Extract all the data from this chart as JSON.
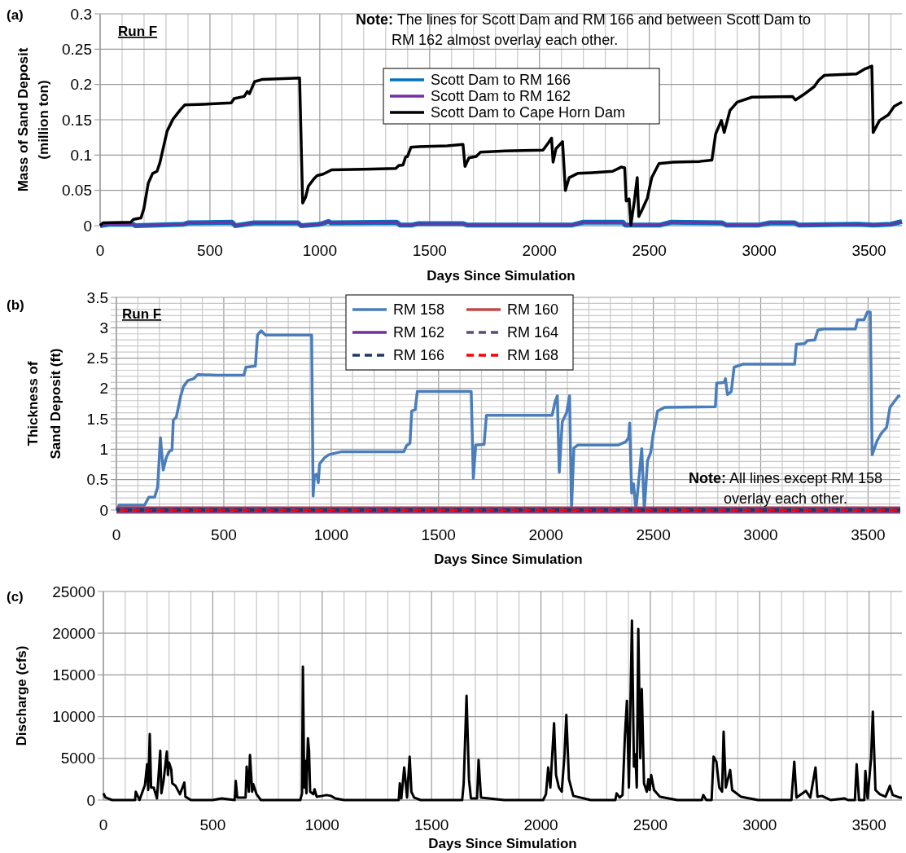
{
  "chart_data": [
    {
      "type": "line",
      "xlabel": "Days Since Simulation",
      "ylabel": "Mass of Sand Deposit\n(million ton)",
      "xlim": [
        0,
        3650
      ],
      "ylim": [
        0,
        0.3
      ],
      "xticks": [
        0,
        {
          "value": 100,
          "label": null
        },
        {
          "value": 200,
          "label": null
        },
        {
          "value": 300,
          "label": null
        },
        {
          "value": 400,
          "label": null
        },
        500,
        {
          "value": 600,
          "label": null
        },
        {
          "value": 700,
          "label": null
        },
        {
          "value": 800,
          "label": null
        },
        {
          "value": 900,
          "label": null
        },
        1000,
        {
          "value": 1100,
          "label": null
        },
        {
          "value": 1200,
          "label": null
        },
        {
          "value": 1300,
          "label": null
        },
        {
          "value": 1400,
          "label": null
        },
        1500,
        {
          "value": 1600,
          "label": null
        },
        {
          "value": 1700,
          "label": null
        },
        {
          "value": 1800,
          "label": null
        },
        {
          "value": 1900,
          "label": null
        },
        2000,
        {
          "value": 2100,
          "label": null
        },
        {
          "value": 2200,
          "label": null
        },
        {
          "value": 2300,
          "label": null
        },
        {
          "value": 2400,
          "label": null
        },
        2500,
        {
          "value": 2600,
          "label": null
        },
        {
          "value": 2700,
          "label": null
        },
        {
          "value": 2800,
          "label": null
        },
        {
          "value": 2900,
          "label": null
        },
        3000,
        {
          "value": 3100,
          "label": null
        },
        {
          "value": 3200,
          "label": null
        },
        {
          "value": 3300,
          "label": null
        },
        {
          "value": 3400,
          "label": null
        },
        3500,
        {
          "value": 3600,
          "label": null
        }
      ],
      "yticks": [
        0,
        0.05,
        0.1,
        0.15,
        0.2,
        0.25,
        0.3
      ],
      "grid": true,
      "legend": "top",
      "annotations": [
        "(a)",
        "Run F",
        "Note: The lines for Scott Dam and RM 166 and between Scott Dam to\nRM 162 almost overlay each other."
      ],
      "series": [
        {
          "name": "Scott Dam to RM 166",
          "color": "#0070c0",
          "x": [
            0,
            40,
            150,
            160,
            380,
            400,
            600,
            615,
            660,
            700,
            900,
            915,
            1000,
            1040,
            1050,
            1350,
            1365,
            1420,
            1450,
            1650,
            1670,
            2150,
            2200,
            2380,
            2390,
            2550,
            2600,
            2830,
            2850,
            3000,
            3050,
            3160,
            3180,
            3450,
            3520,
            3600,
            3650
          ],
          "values": [
            0,
            0.002,
            0.002,
            0,
            0.002,
            0.004,
            0.005,
            0,
            0.002,
            0.004,
            0.004,
            0,
            0.002,
            0.006,
            0.004,
            0.005,
            0.001,
            0.001,
            0.003,
            0.003,
            0.001,
            0.001,
            0.005,
            0.005,
            0.001,
            0.001,
            0.005,
            0.004,
            0.001,
            0.001,
            0.004,
            0.004,
            0.001,
            0.002,
            0.001,
            0.002,
            0.006
          ]
        },
        {
          "name": "Scott Dam to RM 162",
          "color": "#7030a0",
          "x": [
            0,
            40,
            150,
            160,
            380,
            400,
            600,
            615,
            660,
            700,
            900,
            915,
            1000,
            1040,
            1050,
            1350,
            1365,
            1420,
            1450,
            1650,
            1670,
            2150,
            2200,
            2380,
            2390,
            2550,
            2600,
            2830,
            2850,
            3000,
            3050,
            3160,
            3180,
            3450,
            3520,
            3600,
            3650
          ],
          "values": [
            0,
            0.002,
            0.002,
            0,
            0.002,
            0.004,
            0.005,
            0,
            0.002,
            0.004,
            0.004,
            0,
            0.002,
            0.006,
            0.004,
            0.005,
            0.001,
            0.001,
            0.003,
            0.003,
            0.001,
            0.001,
            0.005,
            0.005,
            0.001,
            0.001,
            0.005,
            0.004,
            0.001,
            0.001,
            0.004,
            0.004,
            0.001,
            0.002,
            0.001,
            0.002,
            0.006
          ]
        },
        {
          "name": "Scott Dam to Cape Horn Dam",
          "color": "#000000",
          "x": [
            0,
            13,
            140,
            152,
            186,
            199,
            219,
            239,
            259,
            272,
            305,
            332,
            365,
            385,
            471,
            597,
            610,
            656,
            670,
            680,
            703,
            736,
            908,
            922,
            935,
            948,
            975,
            988,
            1015,
            1054,
            1200,
            1346,
            1359,
            1379,
            1390,
            1399,
            1415,
            1452,
            1580,
            1652,
            1661,
            1679,
            1712,
            1731,
            1844,
            2016,
            2042,
            2055,
            2062,
            2075,
            2105,
            2118,
            2135,
            2174,
            2240,
            2333,
            2372,
            2388,
            2395,
            2408,
            2416,
            2432,
            2445,
            2452,
            2465,
            2491,
            2511,
            2544,
            2610,
            2729,
            2785,
            2802,
            2828,
            2841,
            2867,
            2900,
            2967,
            3152,
            3165,
            3204,
            3251,
            3271,
            3297,
            3443,
            3482,
            3513,
            3519,
            3548,
            3588,
            3615,
            3650
          ],
          "values": [
            0,
            0.004,
            0.005,
            0.009,
            0.011,
            0.024,
            0.06,
            0.074,
            0.077,
            0.089,
            0.134,
            0.151,
            0.164,
            0.171,
            0.172,
            0.174,
            0.18,
            0.183,
            0.19,
            0.187,
            0.204,
            0.207,
            0.209,
            0.032,
            0.04,
            0.056,
            0.067,
            0.071,
            0.073,
            0.079,
            0.08,
            0.081,
            0.085,
            0.086,
            0.097,
            0.098,
            0.111,
            0.112,
            0.113,
            0.115,
            0.084,
            0.096,
            0.098,
            0.104,
            0.106,
            0.107,
            0.118,
            0.124,
            0.09,
            0.109,
            0.119,
            0.05,
            0.068,
            0.074,
            0.075,
            0.077,
            0.083,
            0.082,
            0.035,
            0.038,
            0.001,
            0.035,
            0.068,
            0.013,
            0.021,
            0.039,
            0.068,
            0.088,
            0.09,
            0.091,
            0.093,
            0.13,
            0.149,
            0.132,
            0.163,
            0.175,
            0.182,
            0.183,
            0.178,
            0.186,
            0.197,
            0.206,
            0.213,
            0.215,
            0.222,
            0.226,
            0.132,
            0.149,
            0.157,
            0.169,
            0.175
          ]
        }
      ]
    },
    {
      "type": "line",
      "xlabel": "Days Since Simulation",
      "ylabel": "Thickness of\nSand Deposit  (ft)",
      "xlim": [
        0,
        3650
      ],
      "ylim": [
        0,
        3.5
      ],
      "xticks": [
        0,
        {
          "value": 100,
          "label": null
        },
        {
          "value": 200,
          "label": null
        },
        {
          "value": 300,
          "label": null
        },
        {
          "value": 400,
          "label": null
        },
        500,
        {
          "value": 600,
          "label": null
        },
        {
          "value": 700,
          "label": null
        },
        {
          "value": 800,
          "label": null
        },
        {
          "value": 900,
          "label": null
        },
        1000,
        {
          "value": 1100,
          "label": null
        },
        {
          "value": 1200,
          "label": null
        },
        {
          "value": 1300,
          "label": null
        },
        {
          "value": 1400,
          "label": null
        },
        1500,
        {
          "value": 1600,
          "label": null
        },
        {
          "value": 1700,
          "label": null
        },
        {
          "value": 1800,
          "label": null
        },
        {
          "value": 1900,
          "label": null
        },
        2000,
        {
          "value": 2100,
          "label": null
        },
        {
          "value": 2200,
          "label": null
        },
        {
          "value": 2300,
          "label": null
        },
        {
          "value": 2400,
          "label": null
        },
        2500,
        {
          "value": 2600,
          "label": null
        },
        {
          "value": 2700,
          "label": null
        },
        {
          "value": 2800,
          "label": null
        },
        {
          "value": 2900,
          "label": null
        },
        3000,
        {
          "value": 3100,
          "label": null
        },
        {
          "value": 3200,
          "label": null
        },
        {
          "value": 3300,
          "label": null
        },
        {
          "value": 3400,
          "label": null
        },
        3500,
        {
          "value": 3600,
          "label": null
        }
      ],
      "yticks": [
        0,
        {
          "value": 0.1,
          "label": null
        },
        {
          "value": 0.2,
          "label": null
        },
        {
          "value": 0.3,
          "label": null
        },
        {
          "value": 0.4,
          "label": null
        },
        0.5,
        {
          "value": 0.6,
          "label": null
        },
        {
          "value": 0.7,
          "label": null
        },
        {
          "value": 0.8,
          "label": null
        },
        {
          "value": 0.9,
          "label": null
        },
        1,
        {
          "value": 1.1,
          "label": null
        },
        {
          "value": 1.2,
          "label": null
        },
        {
          "value": 1.3,
          "label": null
        },
        {
          "value": 1.4,
          "label": null
        },
        1.5,
        {
          "value": 1.6,
          "label": null
        },
        {
          "value": 1.7,
          "label": null
        },
        {
          "value": 1.8,
          "label": null
        },
        {
          "value": 1.9,
          "label": null
        },
        2,
        {
          "value": 2.1,
          "label": null
        },
        {
          "value": 2.2,
          "label": null
        },
        {
          "value": 2.3,
          "label": null
        },
        {
          "value": 2.4,
          "label": null
        },
        2.5,
        {
          "value": 2.6,
          "label": null
        },
        {
          "value": 2.7,
          "label": null
        },
        {
          "value": 2.8,
          "label": null
        },
        {
          "value": 2.9,
          "label": null
        },
        3,
        {
          "value": 3.1,
          "label": null
        },
        {
          "value": 3.2,
          "label": null
        },
        {
          "value": 3.3,
          "label": null
        },
        {
          "value": 3.4,
          "label": null
        },
        3.5
      ],
      "grid": true,
      "legend": "top",
      "annotations": [
        "(b)",
        "Run F",
        "Note: All lines except RM 158\noverlay each other."
      ],
      "series": [
        {
          "name": "RM  158",
          "color": "#4a7ebb",
          "x": [
            0,
            13,
            131,
            151,
            178,
            192,
            205,
            218,
            232,
            245,
            259,
            265,
            279,
            299,
            312,
            332,
            359,
            379,
            466,
            594,
            603,
            647,
            657,
            674,
            694,
            909,
            916,
            922,
            933,
            940,
            946,
            969,
            989,
            1023,
            1050,
            1338,
            1351,
            1367,
            1375,
            1391,
            1401,
            1532,
            1652,
            1662,
            1673,
            1712,
            1723,
            2029,
            2043,
            2053,
            2062,
            2076,
            2096,
            2110,
            2119,
            2130,
            2149,
            2337,
            2371,
            2385,
            2390,
            2399,
            2408,
            2419,
            2446,
            2458,
            2473,
            2488,
            2499,
            2520,
            2553,
            2789,
            2795,
            2829,
            2836,
            2845,
            2863,
            2876,
            2917,
            3158,
            3166,
            3205,
            3218,
            3252,
            3266,
            3293,
            3441,
            3451,
            3481,
            3497,
            3510,
            3519,
            3542,
            3561,
            3586,
            3602,
            3640,
            3650
          ],
          "values": [
            0,
            0.08,
            0.08,
            0.21,
            0.21,
            0.38,
            1.19,
            0.66,
            0.86,
            0.96,
            0.99,
            1.48,
            1.53,
            1.87,
            2.03,
            2.13,
            2.16,
            2.23,
            2.22,
            2.22,
            2.35,
            2.37,
            2.88,
            2.95,
            2.88,
            2.88,
            0.23,
            0.57,
            0.59,
            0.45,
            0.76,
            0.86,
            0.91,
            0.94,
            0.96,
            0.96,
            1.06,
            1.1,
            1.63,
            1.65,
            1.95,
            1.95,
            1.95,
            0.52,
            1.07,
            1.08,
            1.56,
            1.56,
            1.79,
            1.88,
            0.62,
            1.45,
            1.6,
            1.88,
            0,
            1.02,
            1.07,
            1.07,
            1.12,
            1.19,
            1.43,
            0.28,
            0.43,
            0,
            1.01,
            0,
            0.81,
            0.95,
            1.24,
            1.63,
            1.69,
            1.7,
            2.09,
            2.1,
            2.16,
            1.9,
            1.95,
            2.35,
            2.4,
            2.4,
            2.73,
            2.74,
            2.79,
            2.8,
            2.96,
            2.98,
            2.98,
            3.13,
            3.13,
            3.26,
            3.26,
            0.91,
            1.14,
            1.26,
            1.36,
            1.69,
            1.87,
            1.88
          ]
        },
        {
          "name": "RM  160",
          "color": "#be4b48",
          "x": [
            0,
            3650
          ],
          "values": [
            0,
            0
          ]
        },
        {
          "name": "RM  162",
          "color": "#7030a0",
          "x": [
            0,
            3650
          ],
          "values": [
            0,
            0
          ]
        },
        {
          "name": "RM  164",
          "color": "#604a7b",
          "line_style": "dashed",
          "x": [
            0,
            3650
          ],
          "values": [
            0,
            0
          ]
        },
        {
          "name": "RM  166",
          "color": "#1f3864",
          "line_style": "dashed",
          "x": [
            0,
            3650
          ],
          "values": [
            0,
            0
          ]
        },
        {
          "name": "RM  168",
          "color": "#ff0000",
          "line_style": "dashed",
          "x": [
            0,
            3650
          ],
          "values": [
            0,
            0
          ]
        }
      ]
    },
    {
      "type": "line",
      "xlabel": "Days Since Simulation",
      "ylabel": "Discharge (cfs)",
      "xlim": [
        0,
        3650
      ],
      "ylim": [
        0,
        25000
      ],
      "xticks": [
        0,
        {
          "value": 100,
          "label": null
        },
        {
          "value": 200,
          "label": null
        },
        {
          "value": 300,
          "label": null
        },
        {
          "value": 400,
          "label": null
        },
        500,
        {
          "value": 600,
          "label": null
        },
        {
          "value": 700,
          "label": null
        },
        {
          "value": 800,
          "label": null
        },
        {
          "value": 900,
          "label": null
        },
        1000,
        {
          "value": 1100,
          "label": null
        },
        {
          "value": 1200,
          "label": null
        },
        {
          "value": 1300,
          "label": null
        },
        {
          "value": 1400,
          "label": null
        },
        1500,
        {
          "value": 1600,
          "label": null
        },
        {
          "value": 1700,
          "label": null
        },
        {
          "value": 1800,
          "label": null
        },
        {
          "value": 1900,
          "label": null
        },
        2000,
        {
          "value": 2100,
          "label": null
        },
        {
          "value": 2200,
          "label": null
        },
        {
          "value": 2300,
          "label": null
        },
        {
          "value": 2400,
          "label": null
        },
        2500,
        {
          "value": 2600,
          "label": null
        },
        {
          "value": 2700,
          "label": null
        },
        {
          "value": 2800,
          "label": null
        },
        {
          "value": 2900,
          "label": null
        },
        3000,
        {
          "value": 3100,
          "label": null
        },
        {
          "value": 3200,
          "label": null
        },
        {
          "value": 3300,
          "label": null
        },
        {
          "value": 3400,
          "label": null
        },
        3500,
        {
          "value": 3600,
          "label": null
        }
      ],
      "yticks": [
        0,
        5000,
        10000,
        15000,
        20000,
        25000
      ],
      "grid": true,
      "annotations": [
        "(c)"
      ],
      "series": [
        {
          "color": "#000000",
          "x": [
            0,
            10,
            40,
            145,
            148,
            155,
            165,
            190,
            200,
            205,
            212,
            218,
            230,
            245,
            260,
            265,
            275,
            290,
            295,
            300,
            310,
            315,
            330,
            350,
            370,
            375,
            400,
            500,
            540,
            600,
            605,
            612,
            650,
            655,
            665,
            670,
            680,
            685,
            700,
            720,
            800,
            900,
            908,
            912,
            918,
            922,
            928,
            935,
            940,
            945,
            960,
            965,
            975,
            1000,
            1020,
            1040,
            1060,
            1100,
            1350,
            1355,
            1362,
            1375,
            1380,
            1388,
            1400,
            1408,
            1420,
            1450,
            1567,
            1640,
            1647,
            1660,
            1671,
            1680,
            1708,
            1715,
            1726,
            1832,
            2010,
            2023,
            2033,
            2043,
            2060,
            2069,
            2082,
            2095,
            2108,
            2116,
            2128,
            2148,
            2227,
            2340,
            2346,
            2360,
            2373,
            2384,
            2393,
            2402,
            2416,
            2425,
            2432,
            2438,
            2445,
            2454,
            2461,
            2471,
            2484,
            2491,
            2497,
            2504,
            2517,
            2544,
            2623,
            2735,
            2742,
            2756,
            2780,
            2789,
            2802,
            2815,
            2828,
            2835,
            2845,
            2865,
            2874,
            2914,
            2993,
            3145,
            3158,
            3168,
            3211,
            3231,
            3255,
            3264,
            3284,
            3324,
            3387,
            3403,
            3435,
            3443,
            3454,
            3478,
            3483,
            3493,
            3509,
            3517,
            3529,
            3549,
            3575,
            3595,
            3608,
            3639,
            3650
          ],
          "values": [
            800,
            300,
            0,
            0,
            1000,
            600,
            0,
            1800,
            4300,
            1200,
            7900,
            1500,
            1500,
            200,
            5900,
            800,
            2300,
            5800,
            3000,
            4500,
            3700,
            2000,
            1700,
            700,
            2100,
            400,
            0,
            0,
            200,
            0,
            2300,
            300,
            300,
            4000,
            1000,
            5400,
            1000,
            1900,
            700,
            0,
            0,
            0,
            800,
            16000,
            1500,
            4700,
            800,
            7400,
            5900,
            1000,
            700,
            1300,
            400,
            500,
            600,
            500,
            200,
            0,
            0,
            2000,
            200,
            3900,
            2600,
            300,
            5200,
            1000,
            300,
            0,
            0,
            0,
            2000,
            12500,
            2500,
            200,
            200,
            4800,
            300,
            0,
            0,
            700,
            3900,
            1500,
            9200,
            3000,
            1500,
            1000,
            5500,
            10200,
            2500,
            500,
            0,
            0,
            800,
            300,
            600,
            7800,
            11900,
            1500,
            21500,
            4000,
            5500,
            1500,
            20500,
            5000,
            13300,
            2000,
            1000,
            2500,
            1200,
            3000,
            1200,
            400,
            0,
            0,
            600,
            0,
            0,
            5200,
            4600,
            1500,
            1000,
            8200,
            1500,
            3600,
            1200,
            400,
            0,
            0,
            4600,
            300,
            1100,
            300,
            3900,
            400,
            500,
            0,
            200,
            0,
            0,
            4300,
            0,
            0,
            3500,
            200,
            5000,
            10600,
            1200,
            700,
            400,
            1700,
            600,
            300,
            300
          ]
        }
      ]
    }
  ]
}
